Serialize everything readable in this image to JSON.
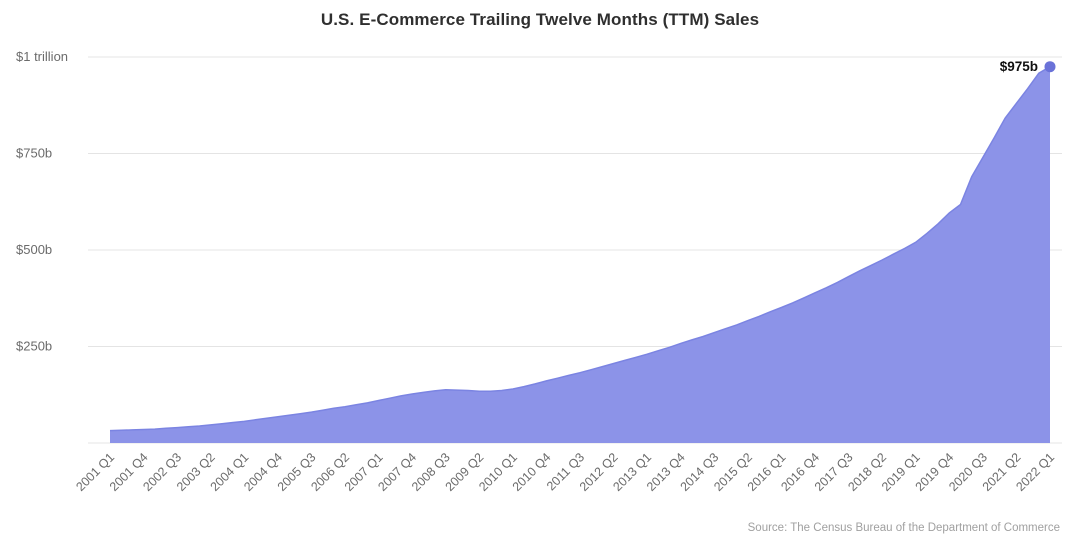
{
  "title": "U.S. E-Commerce Trailing Twelve Months (TTM) Sales",
  "source_note": "Source: The Census Bureau of the Department of Commerce",
  "colors": {
    "area_fill": "#8c93e8",
    "area_stroke": "#7b84e2",
    "dot": "#6a72d8",
    "grid": "#e4e4e4",
    "axis_text": "#6b6b6b",
    "title_text": "#2f2f2f",
    "source_text": "#a0a0a0",
    "annotation_text": "#111111",
    "background": "#ffffff"
  },
  "chart_data": {
    "type": "area",
    "title": "U.S. E-Commerce Trailing Twelve Months (TTM) Sales",
    "xlabel": "",
    "ylabel": "",
    "unit": "USD billions",
    "x_start": "2001 Q1",
    "x_end": "2022 Q1",
    "x_frequency": "quarterly",
    "x_tick_every": 3,
    "x_tick_labels": [
      "2001 Q1",
      "2001 Q4",
      "2002 Q3",
      "2003 Q2",
      "2004 Q1",
      "2004 Q4",
      "2005 Q3",
      "2006 Q2",
      "2007 Q1",
      "2007 Q4",
      "2008 Q3",
      "2009 Q2",
      "2010 Q1",
      "2010 Q4",
      "2011 Q3",
      "2012 Q2",
      "2013 Q1",
      "2013 Q4",
      "2014 Q3",
      "2015 Q2",
      "2016 Q1",
      "2016 Q4",
      "2017 Q3",
      "2018 Q2",
      "2019 Q1",
      "2019 Q4",
      "2020 Q3",
      "2021 Q2",
      "2022 Q1"
    ],
    "y_ticks": [
      {
        "value": 250,
        "label": "$250b"
      },
      {
        "value": 500,
        "label": "$500b"
      },
      {
        "value": 750,
        "label": "$750b"
      },
      {
        "value": 1000,
        "label": "$1 trillion"
      }
    ],
    "ylim": [
      0,
      1000
    ],
    "grid": true,
    "legend": false,
    "values": [
      32,
      33,
      34,
      35,
      36,
      38,
      40,
      42,
      44,
      47,
      50,
      53,
      56,
      60,
      64,
      68,
      72,
      76,
      80,
      85,
      90,
      94,
      99,
      104,
      110,
      116,
      122,
      127,
      131,
      135,
      138,
      137,
      136,
      134,
      134,
      136,
      140,
      146,
      153,
      161,
      168,
      175,
      182,
      190,
      198,
      206,
      214,
      222,
      230,
      239,
      248,
      258,
      267,
      276,
      286,
      296,
      306,
      317,
      328,
      340,
      351,
      363,
      376,
      389,
      402,
      416,
      431,
      446,
      460,
      474,
      489,
      504,
      520,
      543,
      568,
      596,
      618,
      690,
      740,
      790,
      842,
      880,
      918,
      958,
      975
    ],
    "annotation": {
      "x": "2022 Q1",
      "index": 84,
      "value": 975,
      "label": "$975b"
    }
  }
}
